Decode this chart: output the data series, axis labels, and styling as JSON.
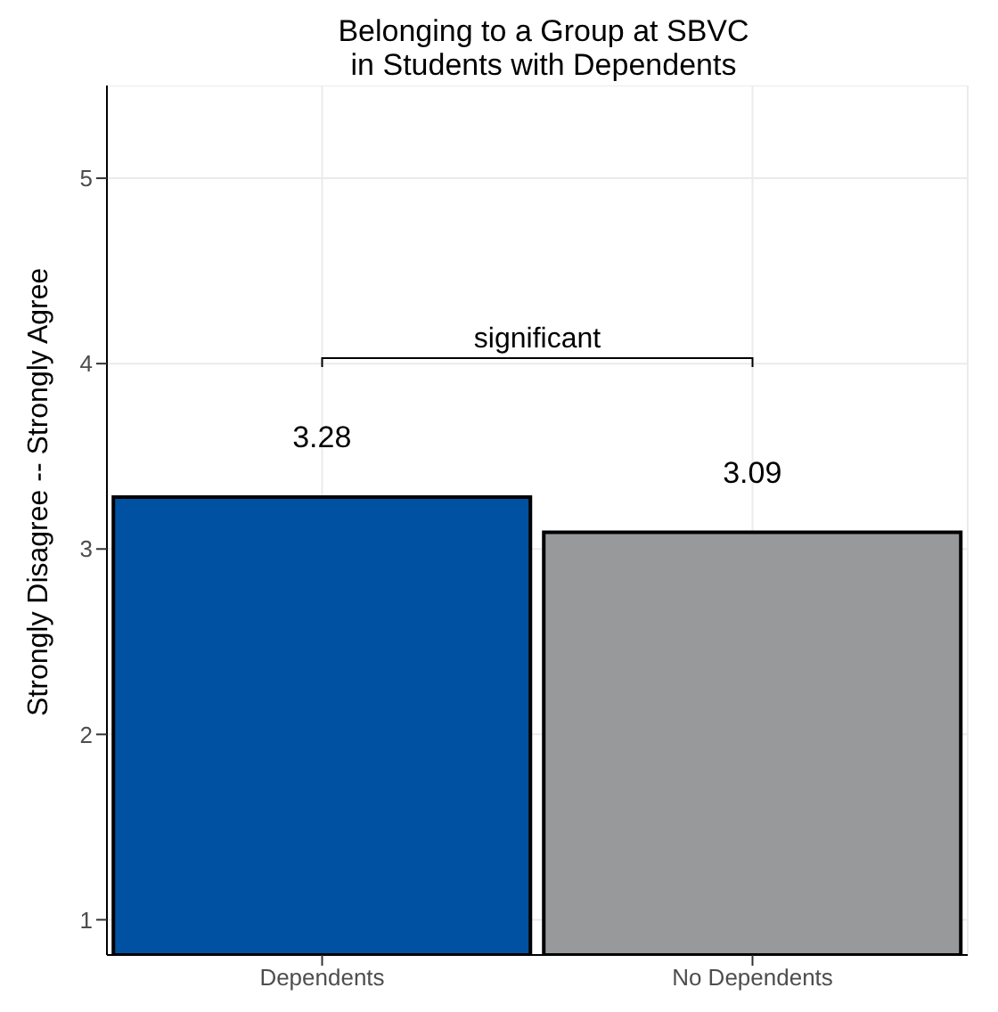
{
  "chart_data": {
    "type": "bar",
    "title": "Belonging to a Group at SBVC\nin Students with Dependents",
    "ylabel": "Strongly Disagree -- Strongly Agree",
    "categories": [
      "Dependents",
      "No Dependents"
    ],
    "values": [
      3.28,
      3.09
    ],
    "colors": [
      "#0051a2",
      "#98999b"
    ],
    "ylim": [
      0.81,
      5.5
    ],
    "yticks": [
      1,
      2,
      3,
      4,
      5
    ],
    "grid": true,
    "data_labels": true,
    "annotations": [
      "significant"
    ]
  }
}
